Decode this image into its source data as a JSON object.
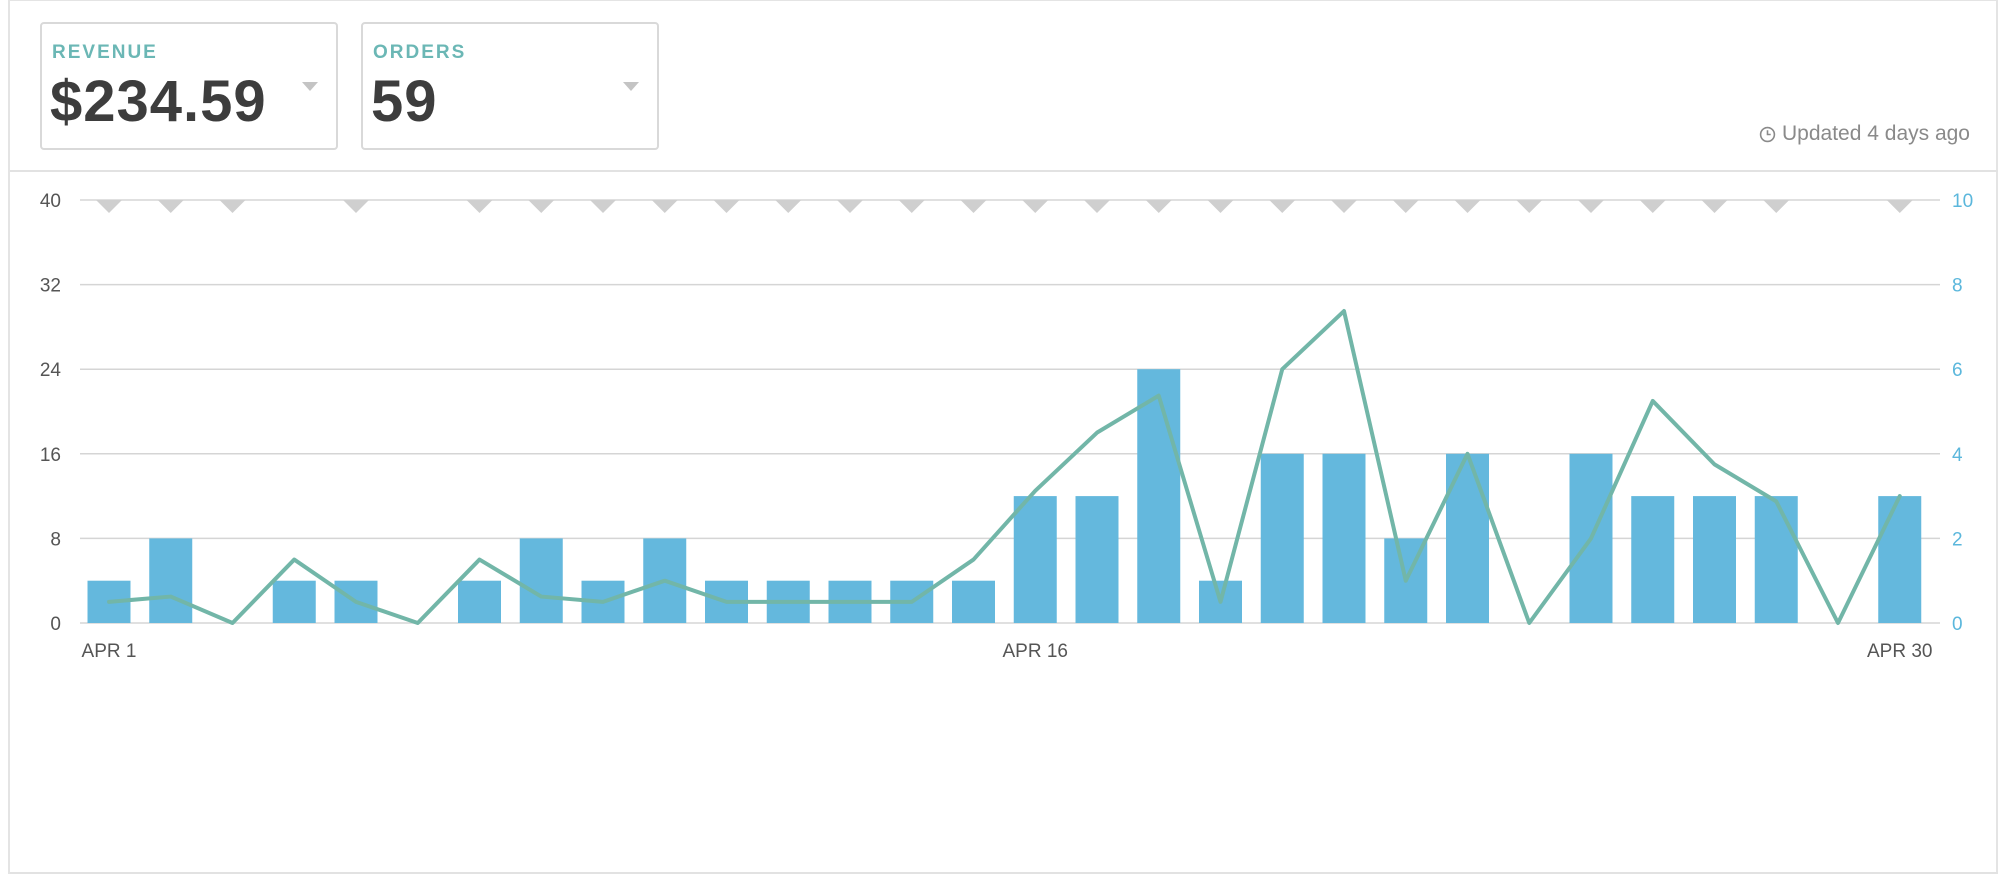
{
  "metrics": {
    "revenue": {
      "label": "REVENUE",
      "value": "$234.59"
    },
    "orders": {
      "label": "ORDERS",
      "value": "59"
    }
  },
  "status": {
    "updated": "Updated 4 days ago"
  },
  "colors": {
    "bars": "#64b8dd",
    "line": "#72b6a8",
    "grid": "#d5d5d5",
    "markers": "#cfcfcf",
    "left_axis": "#555555",
    "right_axis": "#5bb7dc",
    "label_accent": "#6bb7b5"
  },
  "chart_data": {
    "type": "bar",
    "x_tick_labels": [
      "APR 1",
      "APR 16",
      "APR 30"
    ],
    "x": [
      1,
      2,
      3,
      4,
      5,
      6,
      7,
      8,
      9,
      10,
      11,
      12,
      13,
      14,
      15,
      16,
      17,
      18,
      19,
      20,
      21,
      22,
      23,
      24,
      25,
      26,
      27,
      28,
      29,
      30
    ],
    "left_axis": {
      "ticks": [
        0,
        8,
        16,
        24,
        32,
        40
      ],
      "ylim": [
        0,
        40
      ]
    },
    "right_axis": {
      "ticks": [
        0,
        2,
        4,
        6,
        8,
        10
      ],
      "ylim": [
        0,
        10
      ]
    },
    "grid": true,
    "series": [
      {
        "type": "bar",
        "axis": "right",
        "values": [
          1,
          2,
          0,
          1,
          1,
          0,
          1,
          2,
          1,
          2,
          1,
          1,
          1,
          1,
          1,
          3,
          3,
          6,
          1,
          4,
          4,
          2,
          4,
          0,
          4,
          3,
          3,
          3,
          0,
          3
        ]
      },
      {
        "type": "line",
        "axis": "left",
        "values": [
          2,
          2.5,
          0,
          6,
          2,
          0,
          6,
          2.5,
          2,
          4,
          2,
          2,
          2,
          2,
          6,
          12.5,
          18,
          21.5,
          2,
          24,
          29.5,
          4,
          16,
          0,
          8,
          21,
          15,
          11.5,
          0,
          12
        ]
      }
    ],
    "annotation_markers_days": [
      1,
      2,
      3,
      5,
      7,
      8,
      9,
      10,
      11,
      12,
      13,
      14,
      15,
      16,
      17,
      18,
      19,
      20,
      21,
      22,
      23,
      24,
      25,
      26,
      27,
      28,
      30
    ]
  }
}
